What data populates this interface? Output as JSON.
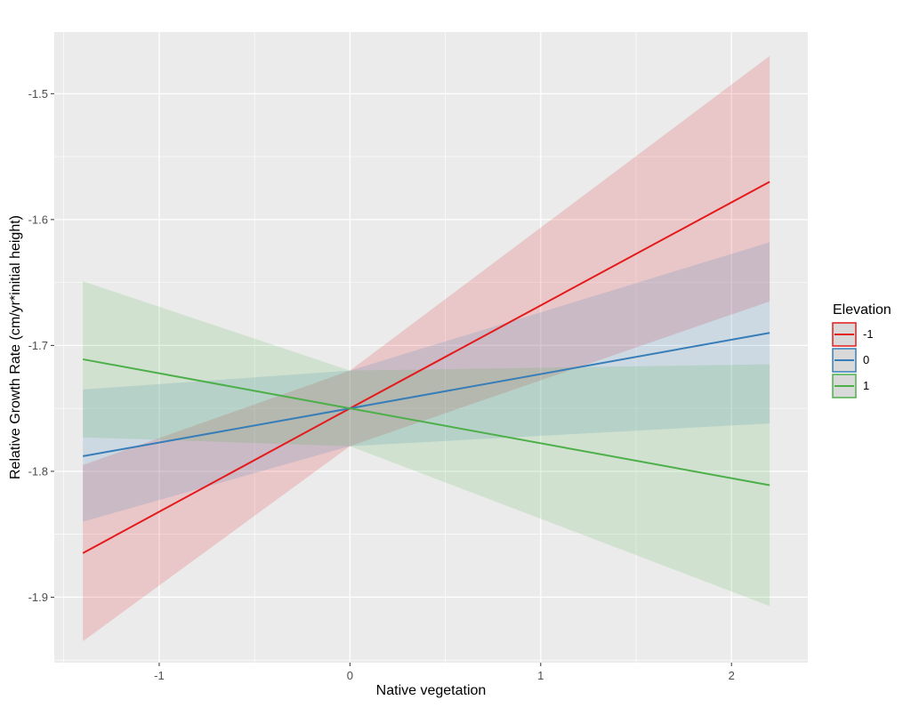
{
  "chart_data": {
    "type": "line",
    "xlabel": "Native vegetation",
    "ylabel": "Relative Growth Rate (cm/yr*initial height)",
    "xlim": [
      -1.55,
      2.4
    ],
    "ylim": [
      -1.952,
      -1.451
    ],
    "x_ticks": [
      -1,
      0,
      1,
      2
    ],
    "x_tick_labels": [
      "-1",
      "0",
      "1",
      "2"
    ],
    "y_ticks": [
      -1.9,
      -1.8,
      -1.7,
      -1.6,
      -1.5
    ],
    "y_tick_labels": [
      "-1.9",
      "-1.8",
      "-1.7",
      "-1.6",
      "-1.5"
    ],
    "grid": true,
    "legend": {
      "title": "Elevation",
      "position": "right"
    },
    "series": [
      {
        "name": "-1",
        "color": "#e41a1c",
        "x": [
          -1.4,
          0,
          2.2
        ],
        "y": [
          -1.865,
          -1.75,
          -1.57
        ],
        "ci_lower": [
          -1.935,
          -1.78,
          -1.665
        ],
        "ci_upper": [
          -1.795,
          -1.72,
          -1.47
        ]
      },
      {
        "name": "0",
        "color": "#377eb8",
        "x": [
          -1.4,
          0,
          2.2
        ],
        "y": [
          -1.788,
          -1.75,
          -1.69
        ],
        "ci_lower": [
          -1.84,
          -1.78,
          -1.762
        ],
        "ci_upper": [
          -1.735,
          -1.72,
          -1.618
        ]
      },
      {
        "name": "1",
        "color": "#4daf4a",
        "x": [
          -1.4,
          0,
          2.2
        ],
        "y": [
          -1.711,
          -1.75,
          -1.811
        ],
        "ci_lower": [
          -1.773,
          -1.78,
          -1.907
        ],
        "ci_upper": [
          -1.649,
          -1.72,
          -1.715
        ]
      }
    ]
  }
}
